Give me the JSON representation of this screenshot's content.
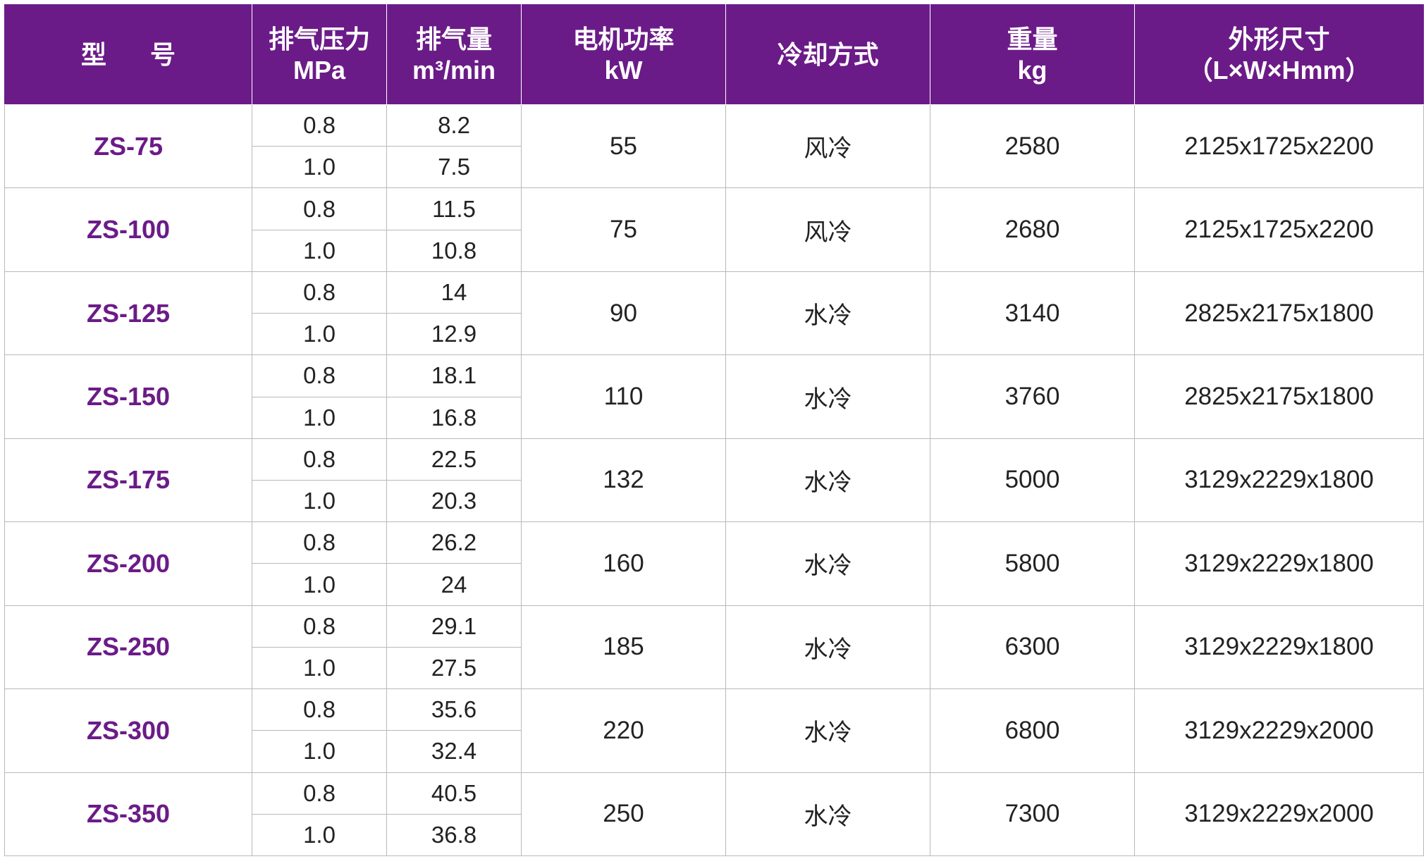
{
  "colors": {
    "header_bg": "#6b1b88",
    "model_text": "#6b1b88",
    "grid": "#b9b9b9"
  },
  "header": {
    "model": "型 号",
    "pressure": [
      "排气压力",
      "MPa"
    ],
    "flow": [
      "排气量",
      "m³/min"
    ],
    "power": [
      "电机功率",
      "kW"
    ],
    "cooling": "冷却方式",
    "weight": [
      "重量",
      "kg"
    ],
    "dimensions": [
      "外形尺寸",
      "（L×W×Hmm）"
    ]
  },
  "rows": [
    {
      "model": "ZS-75",
      "pressure": [
        "0.8",
        "1.0"
      ],
      "flow": [
        "8.2",
        "7.5"
      ],
      "power": "55",
      "cooling": "风冷",
      "weight": "2580",
      "dimensions": "2125x1725x2200"
    },
    {
      "model": "ZS-100",
      "pressure": [
        "0.8",
        "1.0"
      ],
      "flow": [
        "11.5",
        "10.8"
      ],
      "power": "75",
      "cooling": "风冷",
      "weight": "2680",
      "dimensions": "2125x1725x2200"
    },
    {
      "model": "ZS-125",
      "pressure": [
        "0.8",
        "1.0"
      ],
      "flow": [
        "14",
        "12.9"
      ],
      "power": "90",
      "cooling": "水冷",
      "weight": "3140",
      "dimensions": "2825x2175x1800"
    },
    {
      "model": "ZS-150",
      "pressure": [
        "0.8",
        "1.0"
      ],
      "flow": [
        "18.1",
        "16.8"
      ],
      "power": "110",
      "cooling": "水冷",
      "weight": "3760",
      "dimensions": "2825x2175x1800"
    },
    {
      "model": "ZS-175",
      "pressure": [
        "0.8",
        "1.0"
      ],
      "flow": [
        "22.5",
        "20.3"
      ],
      "power": "132",
      "cooling": "水冷",
      "weight": "5000",
      "dimensions": "3129x2229x1800"
    },
    {
      "model": "ZS-200",
      "pressure": [
        "0.8",
        "1.0"
      ],
      "flow": [
        "26.2",
        "24"
      ],
      "power": "160",
      "cooling": "水冷",
      "weight": "5800",
      "dimensions": "3129x2229x1800"
    },
    {
      "model": "ZS-250",
      "pressure": [
        "0.8",
        "1.0"
      ],
      "flow": [
        "29.1",
        "27.5"
      ],
      "power": "185",
      "cooling": "水冷",
      "weight": "6300",
      "dimensions": "3129x2229x1800"
    },
    {
      "model": "ZS-300",
      "pressure": [
        "0.8",
        "1.0"
      ],
      "flow": [
        "35.6",
        "32.4"
      ],
      "power": "220",
      "cooling": "水冷",
      "weight": "6800",
      "dimensions": "3129x2229x2000"
    },
    {
      "model": "ZS-350",
      "pressure": [
        "0.8",
        "1.0"
      ],
      "flow": [
        "40.5",
        "36.8"
      ],
      "power": "250",
      "cooling": "水冷",
      "weight": "7300",
      "dimensions": "3129x2229x2000"
    }
  ]
}
